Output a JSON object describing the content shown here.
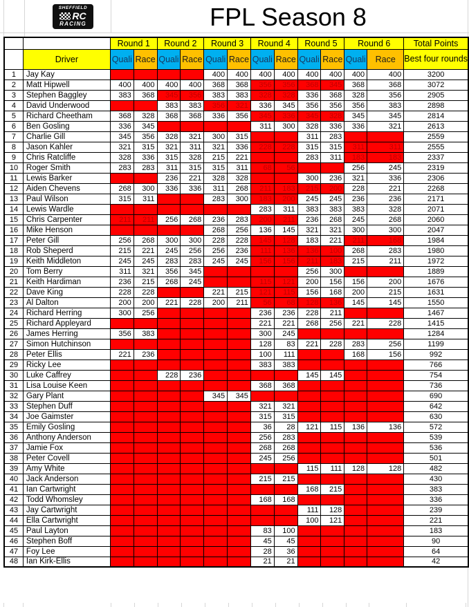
{
  "title": "FPL Season 8",
  "logo": {
    "top": "SHEFFIELD",
    "mid": "RC",
    "bottom": "RACING"
  },
  "table": {
    "rounds": [
      "Round 1",
      "Round 2",
      "Round 3",
      "Round 4",
      "Round 5",
      "Round 6"
    ],
    "quali_label": "Quali",
    "race_label": "Race",
    "driver_label": "Driver",
    "total_points_label": "Total Points",
    "best_four_label": "Best four rounds",
    "colors": {
      "yellow": "#FFFF00",
      "blue": "#00B0F0",
      "orange": "#FFC000",
      "red": "#FF0000",
      "red_text": "#C00000"
    },
    "score_columns": [
      "R1 Quali",
      "R1 Race",
      "R2 Quali",
      "R2 Race",
      "R3 Quali",
      "R3 Race",
      "R4 Quali",
      "R4 Race",
      "R5 Quali",
      "R5 Race",
      "R6 Quali",
      "R6 Race"
    ],
    "rows": [
      {
        "pos": 1,
        "driver": "Jay Kay",
        "scores": [
          null,
          null,
          null,
          null,
          400,
          400,
          400,
          400,
          400,
          400,
          400,
          400
        ],
        "total": 3200
      },
      {
        "pos": 2,
        "driver": "Matt Hipwell",
        "scores": [
          400,
          400,
          400,
          400,
          368,
          368,
          "!356",
          "!356",
          "!368",
          "!345",
          368,
          368
        ],
        "total": 3072
      },
      {
        "pos": 3,
        "driver": "Stephen Baggley",
        "scores": [
          383,
          368,
          "!345",
          "!356",
          383,
          383,
          "!328",
          "!328",
          336,
          368,
          328,
          356
        ],
        "total": 2905
      },
      {
        "pos": 4,
        "driver": "David Underwood",
        "scores": [
          null,
          null,
          383,
          383,
          "!356",
          "!321",
          336,
          345,
          356,
          356,
          356,
          383
        ],
        "total": 2898
      },
      {
        "pos": 5,
        "driver": "Richard Cheetham",
        "scores": [
          368,
          328,
          368,
          368,
          336,
          356,
          "!345",
          "!336",
          "!345",
          "!328",
          345,
          345
        ],
        "total": 2814
      },
      {
        "pos": 6,
        "driver": "Ben Gosling",
        "scores": [
          336,
          345,
          null,
          null,
          null,
          null,
          311,
          300,
          328,
          336,
          336,
          321
        ],
        "total": 2613
      },
      {
        "pos": 7,
        "driver": "Charlie Gill",
        "scores": [
          345,
          356,
          328,
          321,
          300,
          315,
          null,
          null,
          311,
          283,
          null,
          null
        ],
        "total": 2559
      },
      {
        "pos": 8,
        "driver": "Jason Kahler",
        "scores": [
          321,
          315,
          321,
          311,
          321,
          336,
          "!228",
          "!228",
          315,
          315,
          "!311",
          "!311"
        ],
        "total": 2555
      },
      {
        "pos": 9,
        "driver": "Chris Ratcliffe",
        "scores": [
          328,
          336,
          315,
          328,
          215,
          221,
          null,
          null,
          283,
          311,
          "!183",
          "!183"
        ],
        "total": 2337
      },
      {
        "pos": 10,
        "driver": "Roger Smith",
        "scores": [
          283,
          283,
          311,
          315,
          315,
          311,
          "!68",
          "!56",
          null,
          null,
          256,
          245
        ],
        "total": 2319
      },
      {
        "pos": 11,
        "driver": "Lewis Barker",
        "scores": [
          null,
          null,
          236,
          221,
          328,
          328,
          null,
          null,
          300,
          236,
          321,
          336
        ],
        "total": 2306
      },
      {
        "pos": 12,
        "driver": "Aiden Chevens",
        "scores": [
          268,
          300,
          336,
          336,
          311,
          268,
          "!211",
          "!183",
          "!215",
          "!200",
          228,
          221
        ],
        "total": 2268
      },
      {
        "pos": 13,
        "driver": "Paul Wilson",
        "scores": [
          315,
          311,
          null,
          null,
          283,
          300,
          "!183",
          "!200",
          245,
          245,
          236,
          236
        ],
        "total": 2171
      },
      {
        "pos": 14,
        "driver": "Lewis Wardle",
        "scores": [
          null,
          null,
          null,
          null,
          null,
          null,
          283,
          311,
          383,
          383,
          383,
          328
        ],
        "total": 2071
      },
      {
        "pos": 15,
        "driver": "Chris Carpenter",
        "scores": [
          "!211",
          "!211",
          256,
          268,
          236,
          283,
          "!200",
          "!211",
          236,
          268,
          245,
          268
        ],
        "total": 2060
      },
      {
        "pos": 16,
        "driver": "Mike Henson",
        "scores": [
          null,
          null,
          null,
          null,
          268,
          256,
          136,
          145,
          321,
          321,
          300,
          300
        ],
        "total": 2047
      },
      {
        "pos": 17,
        "driver": "Peter Gill",
        "scores": [
          256,
          268,
          300,
          300,
          228,
          228,
          "!145",
          "!128",
          183,
          221,
          "!211",
          "!168"
        ],
        "total": 1984
      },
      {
        "pos": 18,
        "driver": "Rob Sheperd",
        "scores": [
          215,
          221,
          245,
          256,
          256,
          236,
          "!111",
          "!136",
          "!136",
          "!100",
          268,
          283
        ],
        "total": 1980
      },
      {
        "pos": 19,
        "driver": "Keith Middleton",
        "scores": [
          245,
          245,
          283,
          283,
          245,
          245,
          "!156",
          "!156",
          "!211",
          "!183",
          215,
          211
        ],
        "total": 1972
      },
      {
        "pos": 20,
        "driver": "Tom Berry",
        "scores": [
          311,
          321,
          356,
          345,
          null,
          null,
          null,
          null,
          256,
          300,
          null,
          null
        ],
        "total": 1889
      },
      {
        "pos": 21,
        "driver": "Keith Hardiman",
        "scores": [
          236,
          215,
          268,
          245,
          null,
          null,
          "!115",
          "!121",
          200,
          156,
          156,
          200
        ],
        "total": 1676
      },
      {
        "pos": 22,
        "driver": "Dave King",
        "scores": [
          228,
          228,
          null,
          null,
          221,
          215,
          "!121",
          "!115",
          156,
          168,
          200,
          215
        ],
        "total": 1631
      },
      {
        "pos": 23,
        "driver": "Al Dalton",
        "scores": [
          200,
          200,
          221,
          228,
          200,
          211,
          "!56",
          "!68",
          "!128",
          "!136",
          145,
          145
        ],
        "total": 1550
      },
      {
        "pos": 24,
        "driver": "Richard Herring",
        "scores": [
          300,
          256,
          null,
          null,
          null,
          null,
          236,
          236,
          228,
          211,
          null,
          null
        ],
        "total": 1467
      },
      {
        "pos": 25,
        "driver": "Richard Appleyard",
        "scores": [
          null,
          null,
          null,
          null,
          null,
          null,
          221,
          221,
          268,
          256,
          221,
          228
        ],
        "total": 1415
      },
      {
        "pos": 26,
        "driver": "James Herring",
        "scores": [
          356,
          383,
          null,
          null,
          null,
          null,
          300,
          245,
          null,
          null,
          null,
          null
        ],
        "total": 1284
      },
      {
        "pos": 27,
        "driver": "Simon Hutchinson",
        "scores": [
          null,
          null,
          null,
          null,
          null,
          null,
          128,
          83,
          221,
          228,
          283,
          256
        ],
        "total": 1199
      },
      {
        "pos": 28,
        "driver": "Peter Ellis",
        "scores": [
          221,
          236,
          null,
          null,
          null,
          null,
          100,
          111,
          null,
          null,
          168,
          156
        ],
        "total": 992
      },
      {
        "pos": 29,
        "driver": "Ricky Lee",
        "scores": [
          null,
          null,
          null,
          null,
          null,
          null,
          383,
          383,
          null,
          null,
          null,
          null
        ],
        "total": 766
      },
      {
        "pos": 30,
        "driver": "Luke Caffrey",
        "scores": [
          null,
          null,
          228,
          236,
          null,
          null,
          null,
          null,
          145,
          145,
          null,
          null
        ],
        "total": 754
      },
      {
        "pos": 31,
        "driver": "Lisa Louise Keen",
        "scores": [
          null,
          null,
          null,
          null,
          null,
          null,
          368,
          368,
          null,
          null,
          null,
          null
        ],
        "total": 736
      },
      {
        "pos": 32,
        "driver": "Gary Plant",
        "scores": [
          null,
          null,
          null,
          null,
          345,
          345,
          null,
          null,
          null,
          null,
          null,
          null
        ],
        "total": 690
      },
      {
        "pos": 33,
        "driver": "Stephen Duff",
        "scores": [
          null,
          null,
          null,
          null,
          null,
          null,
          321,
          321,
          null,
          null,
          null,
          null
        ],
        "total": 642
      },
      {
        "pos": 34,
        "driver": "Joe Gaimster",
        "scores": [
          null,
          null,
          null,
          null,
          null,
          null,
          315,
          315,
          null,
          null,
          null,
          null
        ],
        "total": 630
      },
      {
        "pos": 35,
        "driver": "Emily Gosling",
        "scores": [
          null,
          null,
          null,
          null,
          null,
          null,
          36,
          28,
          121,
          115,
          136,
          136
        ],
        "total": 572
      },
      {
        "pos": 36,
        "driver": "Anthony Anderson",
        "scores": [
          null,
          null,
          null,
          null,
          null,
          null,
          256,
          283,
          null,
          null,
          null,
          null
        ],
        "total": 539
      },
      {
        "pos": 37,
        "driver": "Jamie Fox",
        "scores": [
          null,
          null,
          null,
          null,
          null,
          null,
          268,
          268,
          null,
          null,
          null,
          null
        ],
        "total": 536
      },
      {
        "pos": 38,
        "driver": "Peter Covell",
        "scores": [
          null,
          null,
          null,
          null,
          null,
          null,
          245,
          256,
          null,
          null,
          null,
          null
        ],
        "total": 501
      },
      {
        "pos": 39,
        "driver": "Amy White",
        "scores": [
          null,
          null,
          null,
          null,
          null,
          null,
          null,
          null,
          115,
          111,
          128,
          128
        ],
        "total": 482
      },
      {
        "pos": 40,
        "driver": "Jack Anderson",
        "scores": [
          null,
          null,
          null,
          null,
          null,
          null,
          215,
          215,
          null,
          null,
          null,
          null
        ],
        "total": 430
      },
      {
        "pos": 41,
        "driver": "Ian Cartwright",
        "scores": [
          null,
          null,
          null,
          null,
          null,
          null,
          null,
          null,
          168,
          215,
          null,
          null
        ],
        "total": 383
      },
      {
        "pos": 42,
        "driver": "Todd Whomsley",
        "scores": [
          null,
          null,
          null,
          null,
          null,
          null,
          168,
          168,
          null,
          null,
          null,
          null
        ],
        "total": 336
      },
      {
        "pos": 43,
        "driver": "Jay Cartwright",
        "scores": [
          null,
          null,
          null,
          null,
          null,
          null,
          null,
          null,
          111,
          128,
          null,
          null
        ],
        "total": 239
      },
      {
        "pos": 44,
        "driver": "Ella Cartwright",
        "scores": [
          null,
          null,
          null,
          null,
          null,
          null,
          null,
          null,
          100,
          121,
          null,
          null
        ],
        "total": 221
      },
      {
        "pos": 45,
        "driver": "Paul Layton",
        "scores": [
          null,
          null,
          null,
          null,
          null,
          null,
          83,
          100,
          null,
          null,
          null,
          null
        ],
        "total": 183
      },
      {
        "pos": 46,
        "driver": "Stephen Boff",
        "scores": [
          null,
          null,
          null,
          null,
          null,
          null,
          45,
          45,
          null,
          null,
          null,
          null
        ],
        "total": 90
      },
      {
        "pos": 47,
        "driver": "Foy Lee",
        "scores": [
          null,
          null,
          null,
          null,
          null,
          null,
          28,
          36,
          null,
          null,
          null,
          null
        ],
        "total": 64
      },
      {
        "pos": 48,
        "driver": "Ian Kirk-Ellis",
        "scores": [
          null,
          null,
          null,
          null,
          null,
          null,
          21,
          21,
          null,
          null,
          null,
          null
        ],
        "total": 42
      }
    ]
  }
}
